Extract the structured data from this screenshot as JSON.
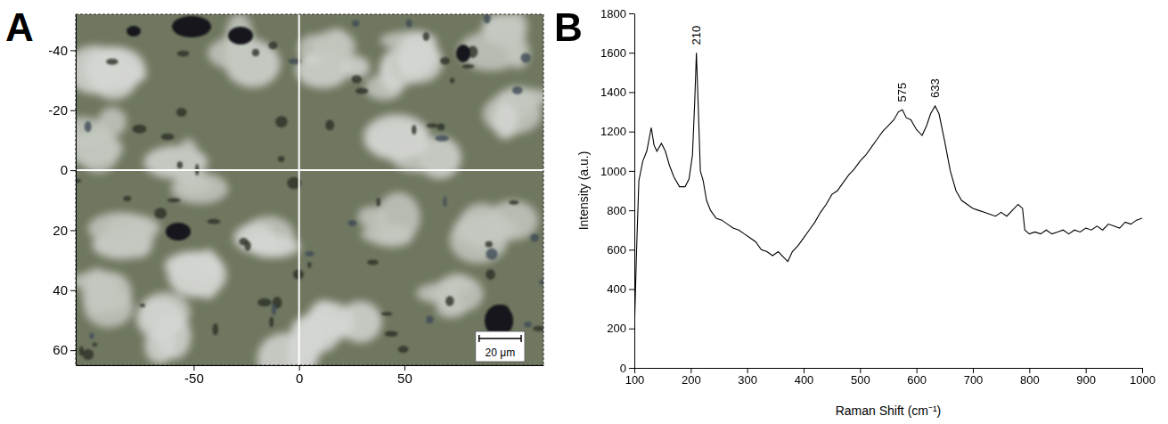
{
  "chart_data": [
    {
      "type": "image",
      "panel_label": "A",
      "xlim": [
        -106,
        116
      ],
      "ylim": [
        -52,
        65
      ],
      "xticks": [
        -50,
        0,
        50
      ],
      "yticks": [
        -40,
        -20,
        0,
        20,
        40,
        60
      ],
      "crosshair": {
        "x": 0,
        "y": 0
      },
      "scale_bar": {
        "label": "20 μm",
        "length": 20
      }
    },
    {
      "type": "line",
      "panel_label": "B",
      "x_label": "Raman Shift (cm⁻¹)",
      "y_label": "Intensity (a.u.)",
      "xlim": [
        100,
        1000
      ],
      "ylim": [
        0,
        1800
      ],
      "xticks": [
        100,
        200,
        300,
        400,
        500,
        600,
        700,
        800,
        900,
        1000
      ],
      "yticks": [
        0,
        200,
        400,
        600,
        800,
        1000,
        1200,
        1400,
        1600,
        1800
      ],
      "color": "#000000",
      "x": [
        100,
        104,
        108,
        115,
        122,
        130,
        135,
        140,
        148,
        155,
        162,
        170,
        180,
        190,
        197,
        203,
        207,
        210,
        213,
        217,
        222,
        228,
        235,
        245,
        255,
        265,
        275,
        285,
        295,
        305,
        315,
        325,
        335,
        345,
        355,
        365,
        372,
        380,
        390,
        400,
        410,
        420,
        430,
        440,
        450,
        460,
        470,
        480,
        490,
        500,
        510,
        520,
        530,
        540,
        550,
        560,
        568,
        575,
        582,
        590,
        600,
        610,
        618,
        625,
        633,
        640,
        650,
        660,
        670,
        680,
        690,
        700,
        710,
        720,
        730,
        740,
        750,
        760,
        770,
        780,
        788,
        792,
        800,
        810,
        820,
        830,
        840,
        850,
        860,
        870,
        880,
        890,
        900,
        910,
        920,
        930,
        940,
        950,
        960,
        970,
        980,
        990,
        1000
      ],
      "values": [
        180,
        600,
        950,
        1050,
        1100,
        1220,
        1130,
        1100,
        1140,
        1100,
        1030,
        970,
        920,
        920,
        960,
        1080,
        1350,
        1600,
        1350,
        1000,
        950,
        850,
        800,
        760,
        750,
        730,
        710,
        700,
        680,
        660,
        640,
        600,
        590,
        570,
        590,
        560,
        540,
        590,
        620,
        660,
        700,
        740,
        790,
        830,
        880,
        900,
        940,
        980,
        1010,
        1050,
        1080,
        1120,
        1160,
        1200,
        1230,
        1260,
        1300,
        1310,
        1270,
        1260,
        1210,
        1180,
        1230,
        1290,
        1330,
        1290,
        1150,
        1000,
        900,
        850,
        830,
        810,
        800,
        790,
        780,
        770,
        790,
        770,
        800,
        830,
        810,
        700,
        680,
        690,
        680,
        700,
        680,
        690,
        700,
        680,
        700,
        690,
        710,
        700,
        720,
        700,
        730,
        720,
        710,
        740,
        730,
        750,
        760
      ],
      "annotations": [
        {
          "text": "210",
          "x": 210,
          "y": 1640
        },
        {
          "text": "575",
          "x": 575,
          "y": 1350
        },
        {
          "text": "633",
          "x": 633,
          "y": 1370
        }
      ]
    }
  ]
}
